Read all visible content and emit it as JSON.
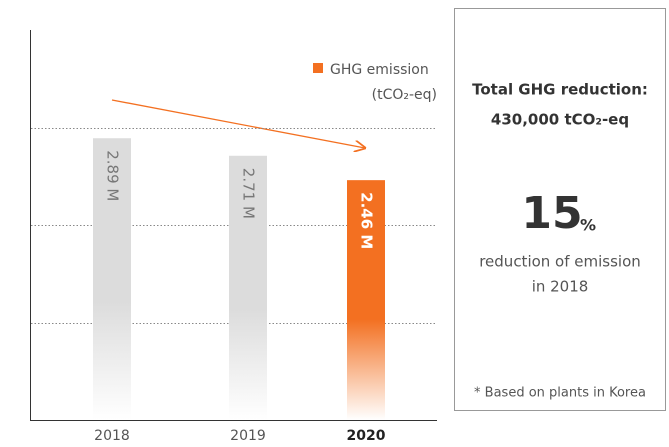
{
  "chart_data": {
    "type": "bar",
    "categories": [
      "2018",
      "2019",
      "2020"
    ],
    "values": [
      2.89,
      2.71,
      2.46
    ],
    "value_labels": [
      "2.89 M",
      "2.71 M",
      "2.46 M"
    ],
    "colors": [
      "#dcdcdc",
      "#dcdcdc",
      "#f37021"
    ],
    "emphasized": "2020",
    "legend": {
      "label": "GHG emission",
      "unit": "(tCO₂-eq)",
      "color": "#f37021"
    },
    "ylim": [
      0,
      4
    ],
    "yticks": [
      1,
      2,
      3
    ],
    "grid": true
  },
  "panel": {
    "title": "Total GHG reduction:",
    "amount": "430,000 tCO₂-eq",
    "percent": "15",
    "percent_unit": "%",
    "caption_1": "reduction of emission",
    "caption_2": "in 2018",
    "note": "* Based on plants in Korea"
  }
}
